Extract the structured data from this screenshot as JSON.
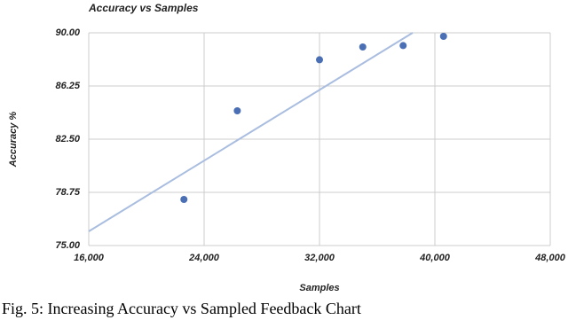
{
  "chart_data": {
    "type": "scatter",
    "title": "Accuracy vs Samples",
    "x_label": "Samples",
    "y_label": "Accuracy %",
    "caption": "Fig.  5: Increasing Accuracy vs Sampled Feedback Chart",
    "series": [
      {
        "color": "#4a6fb5",
        "x": [
          22600,
          26300,
          32000,
          35000,
          37800,
          40600
        ],
        "values": [
          78.25,
          84.5,
          88.1,
          89.0,
          89.1,
          89.75
        ]
      }
    ],
    "trendline": {
      "color": "#a9bde0",
      "x": [
        16000,
        38460
      ],
      "values": [
        76.0,
        90.0
      ]
    },
    "xlim": [
      16000,
      48000
    ],
    "xticks": [
      {
        "value": 16000,
        "label": "16,000"
      },
      {
        "value": 24000,
        "label": "24,000"
      },
      {
        "value": 32000,
        "label": "32,000"
      },
      {
        "value": 40000,
        "label": "40,000"
      },
      {
        "value": 48000,
        "label": "48,000"
      }
    ],
    "ylim": [
      75,
      90
    ],
    "yticks": [
      {
        "value": 75,
        "label": "75.00"
      },
      {
        "value": 78.75,
        "label": "78.75"
      },
      {
        "value": 82.5,
        "label": "82.50"
      },
      {
        "value": 86.25,
        "label": "86.25"
      },
      {
        "value": 90,
        "label": "90.00"
      }
    ],
    "grid": true
  }
}
